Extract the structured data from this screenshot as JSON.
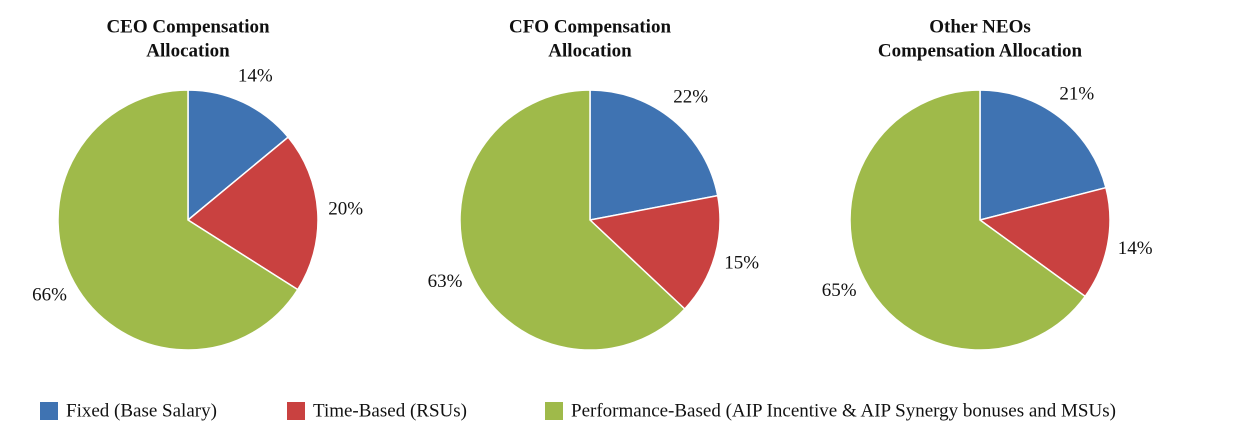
{
  "chart_data": [
    {
      "type": "pie",
      "title": [
        "CEO Compensation",
        "Allocation"
      ],
      "values": [
        14,
        20,
        66
      ],
      "value_labels": [
        "14%",
        "20%",
        "66%"
      ]
    },
    {
      "type": "pie",
      "title": [
        "CFO Compensation",
        "Allocation"
      ],
      "values": [
        22,
        15,
        63
      ],
      "value_labels": [
        "22%",
        "15%",
        "63%"
      ]
    },
    {
      "type": "pie",
      "title": [
        "Other NEOs",
        "Compensation Allocation"
      ],
      "values": [
        21,
        14,
        65
      ],
      "value_labels": [
        "21%",
        "14%",
        "65%"
      ]
    }
  ],
  "legend": {
    "labels": [
      "Fixed (Base Salary)",
      "Time-Based (RSUs)",
      "Performance-Based (AIP Incentive & AIP Synergy bonuses and MSUs)"
    ],
    "colors": [
      "#3f73b2",
      "#c94140",
      "#9fba4a"
    ]
  }
}
